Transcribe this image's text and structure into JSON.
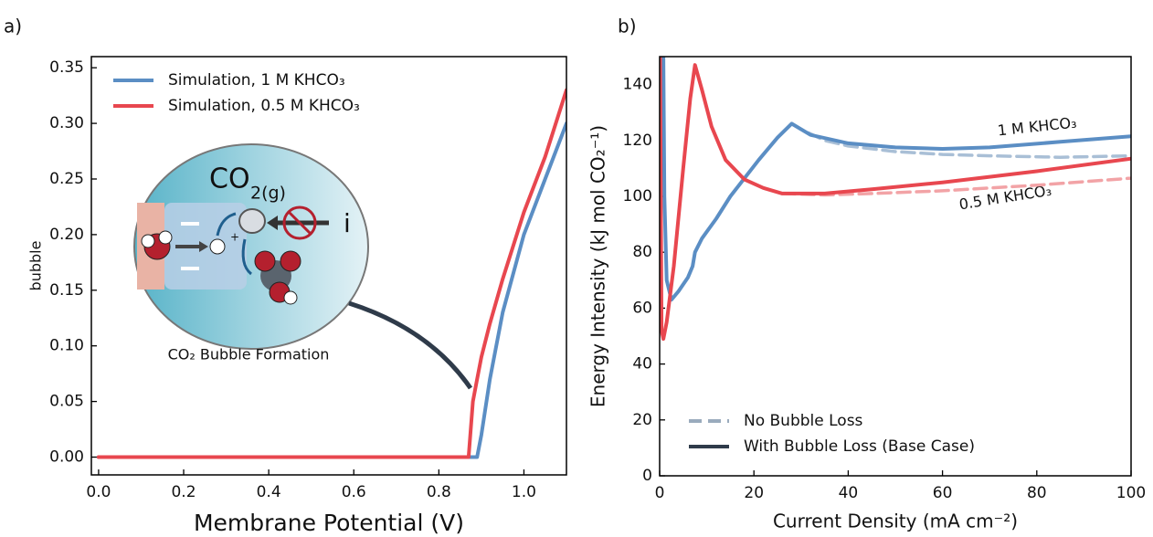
{
  "chart_data": [
    {
      "type": "line",
      "panel_label": "a)",
      "x_label": "Membrane Potential (V)",
      "y_label": "bubble",
      "x": [
        0,
        0.85,
        0.87,
        0.88,
        0.89,
        0.9,
        0.92,
        0.95,
        1.0,
        1.05,
        1.1
      ],
      "series": [
        {
          "name": "Simulation, 1 M KHCO₃",
          "color": "#5b8ec4",
          "values": [
            0,
            0,
            0,
            0,
            0,
            0.02,
            0.07,
            0.13,
            0.2,
            0.25,
            0.3
          ]
        },
        {
          "name": "Simulation, 0.5 M KHCO₃",
          "color": "#e8474f",
          "values": [
            0,
            0,
            0,
            0.05,
            0.07,
            0.09,
            0.12,
            0.16,
            0.22,
            0.27,
            0.33
          ]
        }
      ],
      "xlim": [
        -0.017,
        1.1
      ],
      "xticks": [
        {
          "value": 0,
          "label": "0.0"
        },
        {
          "value": 0.2,
          "label": "0.2"
        },
        {
          "value": 0.4,
          "label": "0.4"
        },
        {
          "value": 0.6,
          "label": "0.6"
        },
        {
          "value": 0.8,
          "label": "0.8"
        },
        {
          "value": 1,
          "label": "1.0"
        }
      ],
      "ylim": [
        -0.016,
        0.36
      ],
      "yticks": [
        {
          "value": 0,
          "label": "0.00"
        },
        {
          "value": 0.05,
          "label": "0.05"
        },
        {
          "value": 0.1,
          "label": "0.10"
        },
        {
          "value": 0.15,
          "label": "0.15"
        },
        {
          "value": 0.2,
          "label": "0.20"
        },
        {
          "value": 0.25,
          "label": "0.25"
        },
        {
          "value": 0.3,
          "label": "0.30"
        },
        {
          "value": 0.35,
          "label": "0.35"
        }
      ],
      "legend_position": "upper left",
      "inset": {
        "formula": "CO",
        "formula_sub": "2(g)",
        "current": "i",
        "charge": "+",
        "caption": "CO₂ Bubble Formation"
      }
    },
    {
      "type": "line",
      "panel_label": "b)",
      "x_label": "Current Density (mA cm⁻²)",
      "y_label": "Energy Intensity (kJ mol CO₂⁻¹)",
      "series": [
        {
          "color": "#a9bfd6",
          "style": "dashed",
          "x": [
            28,
            30,
            35,
            40,
            50,
            60,
            70,
            85,
            100
          ],
          "values": [
            126,
            124,
            120,
            118,
            116,
            115,
            114.5,
            114,
            114.5
          ]
        },
        {
          "color": "#f2a3a6",
          "style": "dashed",
          "x": [
            26,
            35,
            45,
            60,
            80,
            100
          ],
          "values": [
            101,
            100.5,
            101,
            102,
            104,
            106.5
          ]
        },
        {
          "name": "1 M KHCO₃",
          "color": "#5b8ec4",
          "style": "solid",
          "x": [
            0.8,
            1,
            1.5,
            2.5,
            4,
            6,
            7,
            7.5,
            9,
            12,
            15,
            21,
            25,
            28,
            32,
            40,
            50,
            60,
            70,
            85,
            100
          ],
          "values": [
            150,
            100,
            70,
            63,
            66,
            71,
            75,
            80,
            85,
            92,
            100,
            113,
            121,
            126,
            122,
            119,
            117.5,
            117,
            117.5,
            119.5,
            121.5
          ]
        },
        {
          "name": "0.5 M KHCO₃",
          "color": "#e8474f",
          "style": "solid",
          "x": [
            0.1,
            0.4,
            0.8,
            1.5,
            3,
            5,
            6.5,
            7.5,
            9,
            11,
            14,
            18,
            22,
            26,
            35,
            45,
            60,
            80,
            100
          ],
          "values": [
            150,
            52,
            49,
            55,
            75,
            110,
            135,
            147,
            138,
            125,
            113,
            106,
            103,
            101,
            101,
            102.5,
            105,
            109,
            113.5
          ]
        }
      ],
      "legend": [
        {
          "name": "No Bubble Loss",
          "color": "#9aabbd",
          "style": "dashed"
        },
        {
          "name": "With Bubble Loss (Base Case)",
          "color": "#2f3b4a",
          "style": "solid"
        }
      ],
      "legend_position": "lower left",
      "xlim": [
        0,
        100
      ],
      "xticks": [
        0,
        20,
        40,
        60,
        80,
        100
      ],
      "ylim": [
        0,
        150
      ],
      "yticks": [
        0,
        20,
        40,
        60,
        80,
        100,
        120,
        140
      ]
    }
  ]
}
